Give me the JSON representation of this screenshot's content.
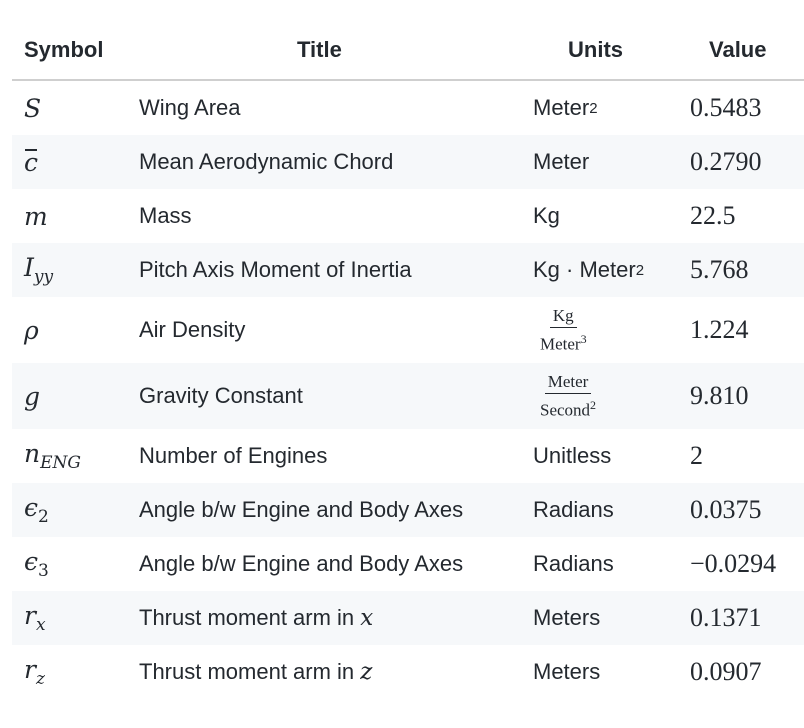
{
  "headers": {
    "symbol": "Symbol",
    "title": "Title",
    "units": "Units",
    "value": "Value"
  },
  "rows": [
    {
      "symbol": "S",
      "title": "Wing Area",
      "units": "Meter",
      "units_sup": "2",
      "value": "0.5483"
    },
    {
      "symbol": "c",
      "title": "Mean Aerodynamic Chord",
      "units": "Meter",
      "value": "0.2790"
    },
    {
      "symbol": "m",
      "title": "Mass",
      "units": "Kg",
      "value": "22.5"
    },
    {
      "symbol": "I",
      "symbol_sub": "yy",
      "title": "Pitch Axis Moment of Inertia",
      "units": "Kg · Meter",
      "units_sup": "2",
      "value": "5.768"
    },
    {
      "symbol": "ρ",
      "title": "Air Density",
      "units_num": "Kg",
      "units_den": "Meter",
      "units_den_sup": "3",
      "value": "1.224"
    },
    {
      "symbol": "g",
      "title": "Gravity Constant",
      "units_num": "Meter",
      "units_den": "Second",
      "units_den_sup": "2",
      "value": "9.810"
    },
    {
      "symbol": "n",
      "symbol_sub": "ENG",
      "title": "Number of Engines",
      "units": "Unitless",
      "value": "2"
    },
    {
      "symbol": "ϵ",
      "symbol_sub": "2",
      "title": "Angle b/w Engine and Body Axes",
      "units": "Radians",
      "value": "0.0375"
    },
    {
      "symbol": "ϵ",
      "symbol_sub": "3",
      "title": "Angle b/w Engine and Body Axes",
      "units": "Radians",
      "value": "−0.0294"
    },
    {
      "symbol": "r",
      "symbol_sub": "x",
      "title": "Thrust moment arm in",
      "title_var": "x",
      "units": "Meters",
      "value": "0.1371"
    },
    {
      "symbol": "r",
      "symbol_sub": "z",
      "title": "Thrust moment arm in",
      "title_var": "z",
      "units": "Meters",
      "value": "0.0907"
    }
  ]
}
